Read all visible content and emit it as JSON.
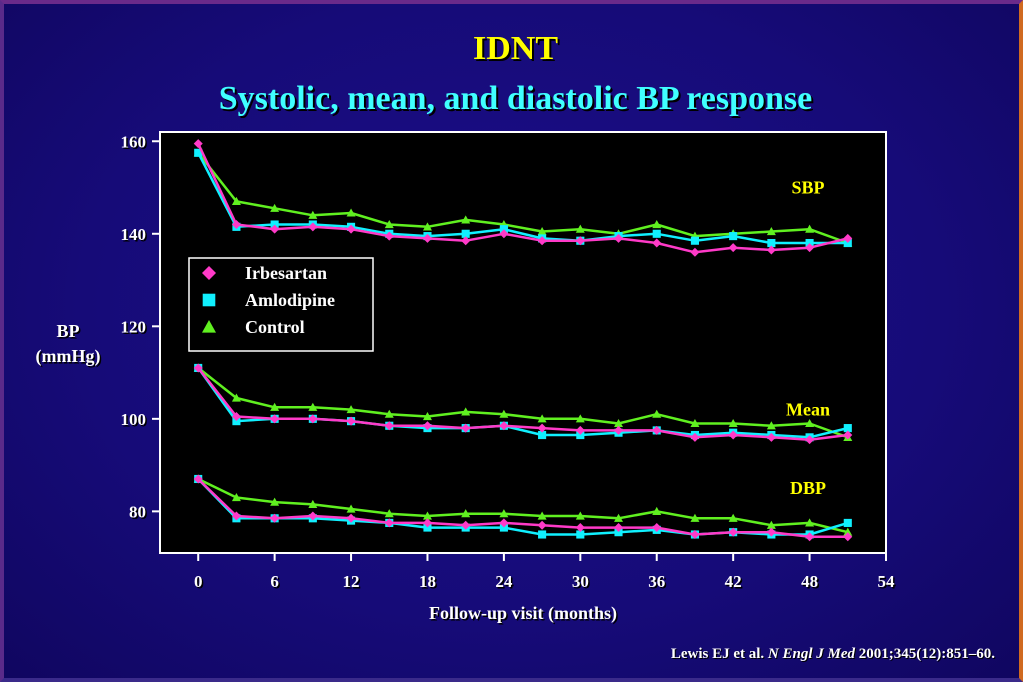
{
  "slide": {
    "title": "IDNT",
    "subtitle": "Systolic, mean, and diastolic BP response",
    "citation_authors": "Lewis EJ et al.",
    "citation_journal": "N Engl J Med",
    "citation_ref": "2001;345(12):851–60."
  },
  "chart_data": {
    "type": "line",
    "xlabel": "Follow-up visit (months)",
    "ylabel_line1": "BP",
    "ylabel_line2": "(mmHg)",
    "xlim": [
      -3,
      54
    ],
    "ylim": [
      71,
      162
    ],
    "xticks": [
      0,
      6,
      12,
      18,
      24,
      30,
      36,
      42,
      48,
      54
    ],
    "yticks": [
      80,
      100,
      120,
      140,
      160
    ],
    "grid": false,
    "legend_position": "upper-left",
    "colors": {
      "Irbesartan": "#ff3ac8",
      "Amlodipine": "#10f0ff",
      "Control": "#60f020",
      "plot_background": "#000000",
      "slide_background": "#160b78",
      "title": "#ffff00",
      "subtitle": "#40ffff",
      "group_label": "#ffff00"
    },
    "x": [
      0,
      3,
      6,
      9,
      12,
      15,
      18,
      21,
      24,
      27,
      30,
      33,
      36,
      39,
      42,
      45,
      48,
      51
    ],
    "groups": [
      {
        "label": "SBP",
        "series": [
          {
            "name": "Irbesartan",
            "marker": "diamond",
            "values": [
              159.5,
              142.0,
              141.0,
              141.5,
              141.0,
              139.5,
              139.0,
              138.5,
              140.0,
              138.5,
              138.5,
              139.0,
              138.0,
              136.0,
              137.0,
              136.5,
              137.0,
              139.0
            ]
          },
          {
            "name": "Amlodipine",
            "marker": "square",
            "values": [
              157.5,
              141.5,
              142.0,
              142.0,
              141.5,
              140.0,
              139.5,
              140.0,
              141.0,
              139.0,
              138.5,
              139.5,
              140.0,
              138.5,
              139.5,
              138.0,
              138.0,
              138.0
            ]
          },
          {
            "name": "Control",
            "marker": "triangle",
            "values": [
              157.5,
              147.0,
              145.5,
              144.0,
              144.5,
              142.0,
              141.5,
              143.0,
              142.0,
              140.5,
              141.0,
              140.0,
              142.0,
              139.5,
              140.0,
              140.5,
              141.0,
              138.0
            ]
          }
        ]
      },
      {
        "label": "Mean",
        "series": [
          {
            "name": "Irbesartan",
            "marker": "diamond",
            "values": [
              111.0,
              100.5,
              100.0,
              100.0,
              99.5,
              98.5,
              98.5,
              98.0,
              98.5,
              98.0,
              97.5,
              97.5,
              97.5,
              96.0,
              96.5,
              96.0,
              95.5,
              96.5
            ]
          },
          {
            "name": "Amlodipine",
            "marker": "square",
            "values": [
              111.0,
              99.5,
              100.0,
              100.0,
              99.5,
              98.5,
              98.0,
              98.0,
              98.5,
              96.5,
              96.5,
              97.0,
              97.5,
              96.5,
              97.0,
              96.5,
              96.0,
              98.0
            ]
          },
          {
            "name": "Control",
            "marker": "triangle",
            "values": [
              111.0,
              104.5,
              102.5,
              102.5,
              102.0,
              101.0,
              100.5,
              101.5,
              101.0,
              100.0,
              100.0,
              99.0,
              101.0,
              99.0,
              99.0,
              98.5,
              99.0,
              96.0
            ]
          }
        ]
      },
      {
        "label": "DBP",
        "series": [
          {
            "name": "Irbesartan",
            "marker": "diamond",
            "values": [
              87.0,
              79.0,
              78.5,
              79.0,
              78.5,
              77.5,
              77.5,
              77.0,
              77.5,
              77.0,
              76.5,
              76.5,
              76.5,
              75.0,
              75.5,
              75.5,
              74.5,
              74.5
            ]
          },
          {
            "name": "Amlodipine",
            "marker": "square",
            "values": [
              87.0,
              78.5,
              78.5,
              78.5,
              78.0,
              77.5,
              76.5,
              76.5,
              76.5,
              75.0,
              75.0,
              75.5,
              76.0,
              75.0,
              75.5,
              75.0,
              75.0,
              77.5
            ]
          },
          {
            "name": "Control",
            "marker": "triangle",
            "values": [
              87.0,
              83.0,
              82.0,
              81.5,
              80.5,
              79.5,
              79.0,
              79.5,
              79.5,
              79.0,
              79.0,
              78.5,
              80.0,
              78.5,
              78.5,
              77.0,
              77.5,
              75.5
            ]
          }
        ]
      }
    ]
  }
}
